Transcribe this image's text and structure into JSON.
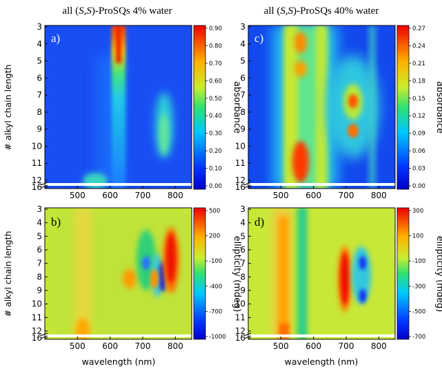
{
  "titles": {
    "left": {
      "prefix": "all (",
      "ital1": "S",
      "comma": ",",
      "ital2": "S",
      "suffix": ")-ProSQs 4% water"
    },
    "right": {
      "prefix": "all (",
      "ital1": "S",
      "comma": ",",
      "ital2": "S",
      "suffix": ")-ProSQs 40% water"
    }
  },
  "chart_data": [
    {
      "type": "heatmap",
      "panel": "a)",
      "xlabel": "",
      "ylabel": "# alkyl chain length",
      "x_ticks": [
        "500",
        "600",
        "700",
        "800"
      ],
      "xlim": [
        400,
        850
      ],
      "y_ticks": [
        "3",
        "4",
        "5",
        "6",
        "7",
        "8",
        "9",
        "10",
        "11",
        "12",
        "16"
      ],
      "colorbar": {
        "label": "absorbance",
        "range": [
          0.0,
          0.9
        ],
        "ticks": [
          "0.90",
          "0.80",
          "0.70",
          "0.60",
          "0.50",
          "0.40",
          "0.30",
          "0.20",
          "0.10",
          "0.00"
        ]
      },
      "features": [
        {
          "x": 640,
          "rows": [
            3,
            6
          ],
          "value": 0.9
        },
        {
          "x": 640,
          "rows": [
            6,
            12
          ],
          "value": 0.35
        },
        {
          "x": 755,
          "rows": [
            7,
            11
          ],
          "value": 0.4
        },
        {
          "x": 555,
          "rows": [
            11,
            12
          ],
          "value": 0.35
        }
      ]
    },
    {
      "type": "heatmap",
      "panel": "c)",
      "xlabel": "",
      "ylabel": "",
      "x_ticks": [
        "500",
        "600",
        "700",
        "800"
      ],
      "xlim": [
        400,
        850
      ],
      "y_ticks": [
        "3",
        "4",
        "5",
        "6",
        "7",
        "8",
        "9",
        "10",
        "11",
        "12",
        "16"
      ],
      "colorbar": {
        "label": "absorbance",
        "range": [
          0.0,
          0.27
        ],
        "ticks": [
          "0.27",
          "0.24",
          "0.21",
          "0.18",
          "0.15",
          "0.12",
          "0.09",
          "0.06",
          "0.03",
          "0.00"
        ]
      },
      "features": [
        {
          "x": 545,
          "rows": [
            3,
            12
          ],
          "value": 0.24
        },
        {
          "x": 720,
          "rows": [
            7,
            9
          ],
          "value": 0.25
        },
        {
          "x": 720,
          "rows": [
            9.5,
            10.5
          ],
          "value": 0.23
        },
        {
          "x": 545,
          "rows": [
            10,
            12
          ],
          "value": 0.27
        }
      ]
    },
    {
      "type": "heatmap",
      "panel": "b)",
      "xlabel": "wavelength (nm)",
      "ylabel": "# alkyl chain length",
      "x_ticks": [
        "500",
        "600",
        "700",
        "800"
      ],
      "xlim": [
        400,
        850
      ],
      "y_ticks": [
        "3",
        "4",
        "5",
        "6",
        "7",
        "8",
        "9",
        "10",
        "11",
        "12",
        "16"
      ],
      "colorbar": {
        "label": "ellipticity (mdeg)",
        "range": [
          -1000,
          500
        ],
        "ticks": [
          "500",
          "200",
          "-100",
          "-400",
          "-700",
          "-1000"
        ]
      },
      "features": [
        {
          "x": 785,
          "rows": [
            6,
            10
          ],
          "value": 500
        },
        {
          "x": 760,
          "rows": [
            8,
            10
          ],
          "value": -1000
        },
        {
          "x": 720,
          "rows": [
            7,
            9
          ],
          "value": -700
        },
        {
          "x": 670,
          "rows": [
            8,
            9
          ],
          "value": 350
        }
      ]
    },
    {
      "type": "heatmap",
      "panel": "d)",
      "xlabel": "wavelength (nm)",
      "ylabel": "",
      "x_ticks": [
        "500",
        "600",
        "700",
        "800"
      ],
      "xlim": [
        400,
        850
      ],
      "y_ticks": [
        "3",
        "4",
        "5",
        "6",
        "7",
        "8",
        "9",
        "10",
        "11",
        "12",
        "16"
      ],
      "colorbar": {
        "label": "ellipticity (mdeg)",
        "range": [
          -700,
          300
        ],
        "ticks": [
          "300",
          "100",
          "-100",
          "-300",
          "-500",
          "-700"
        ]
      },
      "features": [
        {
          "x": 710,
          "rows": [
            6,
            10
          ],
          "value": 300
        },
        {
          "x": 750,
          "rows": [
            8,
            10
          ],
          "value": -700
        },
        {
          "x": 545,
          "rows": [
            3,
            12
          ],
          "value": -350
        },
        {
          "x": 505,
          "rows": [
            4,
            12
          ],
          "value": 200
        }
      ]
    }
  ]
}
